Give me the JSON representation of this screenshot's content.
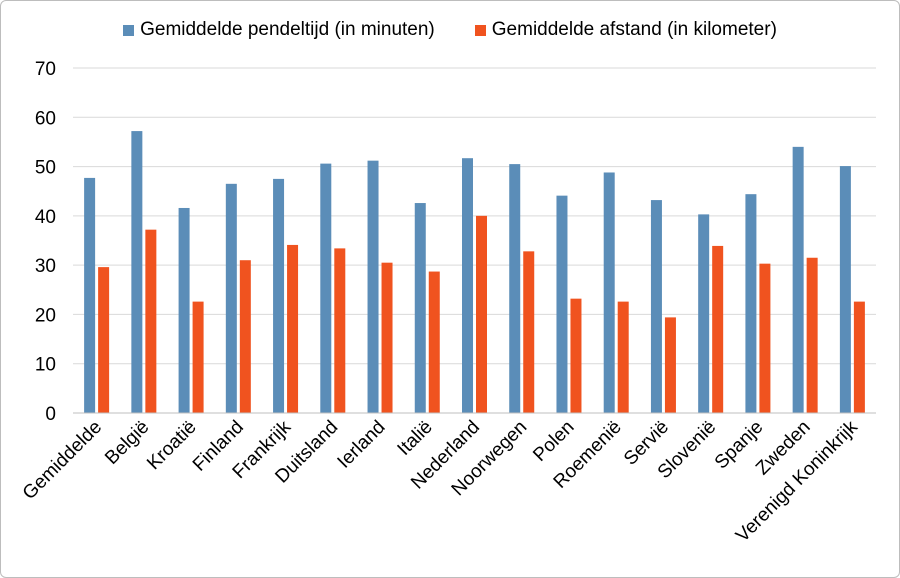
{
  "chart_data": {
    "type": "bar",
    "title": "",
    "xlabel": "",
    "ylabel": "",
    "ylim": [
      0,
      70
    ],
    "yticks": [
      0,
      10,
      20,
      30,
      40,
      50,
      60,
      70
    ],
    "grid": true,
    "legend_position": "top",
    "categories": [
      "Gemiddelde",
      "België",
      "Kroatië",
      "Finland",
      "Frankrijk",
      "Duitsland",
      "Ierland",
      "Italië",
      "Nederland",
      "Noorwegen",
      "Polen",
      "Roemenië",
      "Servië",
      "Slovenië",
      "Spanje",
      "Zweden",
      "Verenigd Koninkrijk"
    ],
    "series": [
      {
        "name": "Gemiddelde pendeltijd (in minuten)",
        "color": "#5b8db8",
        "values": [
          47.7,
          57.2,
          41.6,
          46.5,
          47.5,
          50.6,
          51.2,
          42.6,
          51.7,
          50.5,
          44.1,
          48.8,
          43.2,
          40.3,
          44.4,
          54.0,
          50.1
        ]
      },
      {
        "name": "Gemiddelde afstand (in kilometer)",
        "color": "#f0531f",
        "values": [
          29.6,
          37.2,
          22.6,
          31.0,
          34.1,
          33.4,
          30.5,
          28.7,
          40.0,
          32.8,
          23.2,
          22.6,
          19.4,
          33.9,
          30.3,
          31.5,
          22.6
        ]
      }
    ]
  }
}
